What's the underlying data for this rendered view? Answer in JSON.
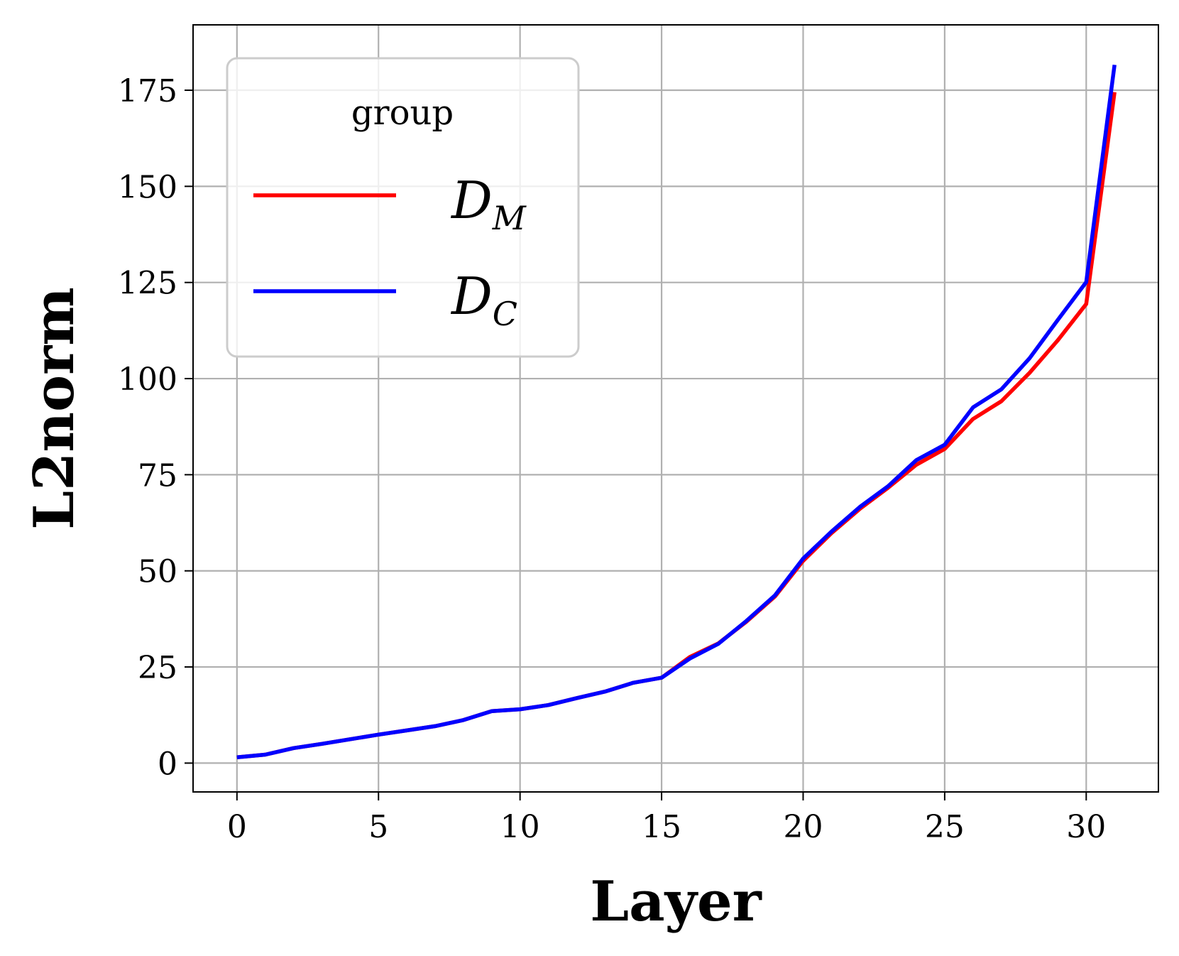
{
  "chart_data": {
    "type": "line",
    "xlabel": "Layer",
    "ylabel": "L2norm",
    "xlim": [
      -1.55,
      32.55
    ],
    "ylim": [
      -7.5,
      192
    ],
    "xticks": [
      0,
      5,
      10,
      15,
      20,
      25,
      30
    ],
    "yticks": [
      0,
      25,
      50,
      75,
      100,
      125,
      150,
      175
    ],
    "grid": true,
    "legend": {
      "title": "group",
      "placement": "upper-left"
    },
    "x": [
      0,
      1,
      2,
      3,
      4,
      5,
      6,
      7,
      8,
      9,
      10,
      11,
      12,
      13,
      14,
      15,
      16,
      17,
      18,
      19,
      20,
      21,
      22,
      23,
      24,
      25,
      26,
      27,
      28,
      29,
      30,
      31
    ],
    "series": [
      {
        "name": "D",
        "name_subscript": "M",
        "color": "#ff0000",
        "values": [
          1.5,
          2.2,
          3.9,
          5.0,
          6.2,
          7.4,
          8.5,
          9.6,
          11.2,
          13.5,
          14.0,
          15.1,
          16.9,
          18.6,
          20.9,
          22.2,
          27.6,
          31.1,
          36.8,
          43.3,
          52.6,
          59.8,
          66.1,
          71.6,
          77.6,
          81.7,
          89.5,
          94.1,
          101.5,
          110.0,
          119.4,
          174.5
        ]
      },
      {
        "name": "D",
        "name_subscript": "C",
        "color": "#0000ff",
        "values": [
          1.5,
          2.2,
          3.9,
          5.0,
          6.2,
          7.4,
          8.5,
          9.6,
          11.2,
          13.5,
          14.0,
          15.1,
          16.9,
          18.6,
          20.9,
          22.2,
          27.2,
          31.0,
          37.0,
          43.6,
          53.2,
          60.2,
          66.6,
          72.0,
          78.8,
          82.8,
          92.5,
          97.2,
          105.3,
          115.3,
          125.1,
          181.6
        ]
      }
    ]
  }
}
